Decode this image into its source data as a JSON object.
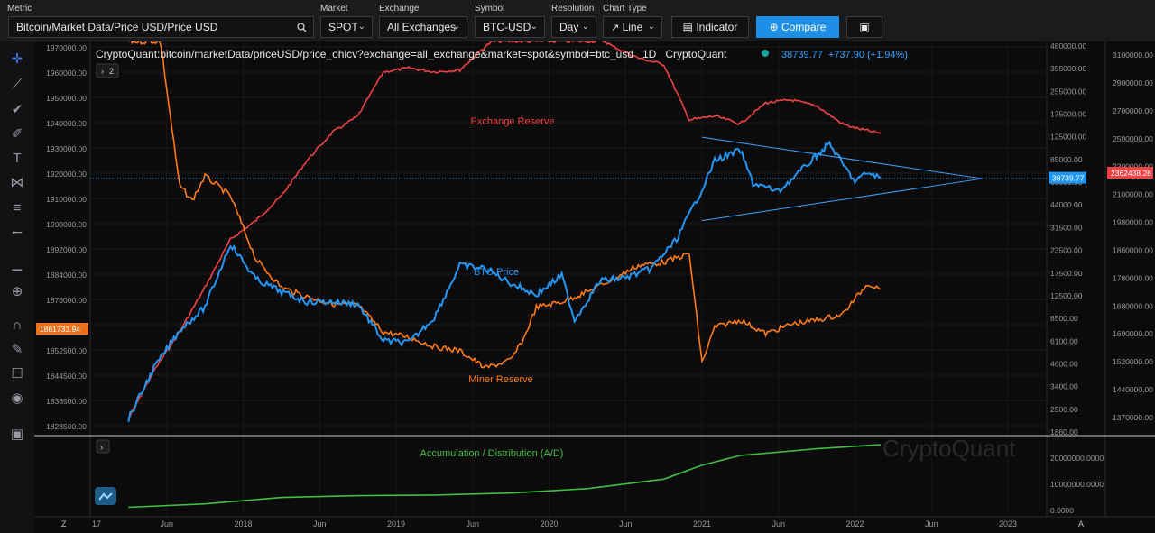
{
  "toolbar": {
    "metric_label": "Metric",
    "metric_value": "Bitcoin/Market Data/Price USD/Price USD",
    "market_label": "Market",
    "market_value": "SPOT",
    "exchange_label": "Exchange",
    "exchange_value": "All Exchanges",
    "symbol_label": "Symbol",
    "symbol_value": "BTC-USD",
    "resolution_label": "Resolution",
    "resolution_value": "Day",
    "chart_type_label": "Chart Type",
    "chart_type_value": "Line",
    "indicator_label": "Indicator",
    "compare_label": "Compare"
  },
  "legend": {
    "source": "CryptoQuant:bitcoin/marketData/priceUSD/price_ohlcv?exchange=all_exchange&market=spot&symbol=btc_usd",
    "resolution": "1D",
    "brand": "CryptoQuant",
    "last_value": "38739.77",
    "change": "+737.90 (+1.94%)",
    "collapse_count": "2"
  },
  "colors": {
    "btc_price": "#2196f3",
    "exchange_reserve": "#f04242",
    "miner_reserve": "#ff7a10",
    "accumulation": "#3fbf3f",
    "background": "#0b0b0c",
    "accent": "#1e8fe6"
  },
  "watermark": "CryptoQuant",
  "chart_data": [
    {
      "type": "line",
      "title": "",
      "x_ticks": [
        "17",
        "Jun",
        "2018",
        "Jun",
        "2019",
        "Jun",
        "2020",
        "Jun",
        "2021",
        "Jun",
        "2022",
        "Jun",
        "2023"
      ],
      "left_axis_ticks": [
        "1970000.00",
        "1960000.00",
        "1950000.00",
        "1940000.00",
        "1930000.00",
        "1920000.00",
        "1910000.00",
        "1900000.00",
        "1892000.00",
        "1884000.00",
        "1876000.00",
        "1868000.00",
        "1852500.00",
        "1844500.00",
        "1836500.00",
        "1828500.00"
      ],
      "left_axis_current": "1861733.94",
      "price_axis_ticks": [
        "480000.00",
        "355000.00",
        "255000.00",
        "175000.00",
        "125000.00",
        "85000.00",
        "60000.00",
        "44000.00",
        "31500.00",
        "23500.00",
        "17500.00",
        "12500.00",
        "8500.00",
        "6100.00",
        "4600.00",
        "3400.00",
        "2500.00",
        "1860.00"
      ],
      "price_axis_current": "38739.77",
      "right_axis_ticks": [
        "3100000.00",
        "2900000.00",
        "2700000.00",
        "2500000.00",
        "2300000.00",
        "2100000.00",
        "1980000.00",
        "1860000.00",
        "1780000.00",
        "1680000.00",
        "1600000.00",
        "1520000.00",
        "1440000.00",
        "1370000.00"
      ],
      "right_axis_current": "2362438.28",
      "annotations": [
        "Exchange Reserve",
        "BTC Price",
        "Miner Reserve"
      ],
      "series": [
        {
          "name": "BTC Price",
          "scale": "log",
          "x": [
            "2017-04",
            "2017-06",
            "2017-08",
            "2017-10",
            "2017-12",
            "2018-02",
            "2018-04",
            "2018-06",
            "2018-08",
            "2018-10",
            "2018-12",
            "2019-02",
            "2019-04",
            "2019-06",
            "2019-08",
            "2019-10",
            "2019-12",
            "2020-02",
            "2020-03",
            "2020-05",
            "2020-07",
            "2020-09",
            "2020-11",
            "2021-01",
            "2021-02",
            "2021-04",
            "2021-05",
            "2021-07",
            "2021-09",
            "2021-11",
            "2021-12",
            "2022-01",
            "2022-02",
            "2022-03"
          ],
          "values": [
            1200,
            2500,
            4300,
            6000,
            15000,
            9000,
            7500,
            6500,
            6500,
            6300,
            3700,
            3600,
            5200,
            11000,
            10500,
            8500,
            7200,
            9500,
            5000,
            8800,
            9200,
            10500,
            16000,
            33000,
            50000,
            58000,
            36000,
            32000,
            45000,
            64000,
            48000,
            37000,
            42000,
            38739.77
          ]
        },
        {
          "name": "Exchange Reserve",
          "scale": "log",
          "x": [
            "2017-04",
            "2017-06",
            "2017-08",
            "2017-10",
            "2017-12",
            "2018-02",
            "2018-04",
            "2018-06",
            "2018-08",
            "2018-10",
            "2018-12",
            "2019-02",
            "2019-04",
            "2019-06",
            "2019-08",
            "2019-10",
            "2019-12",
            "2020-02",
            "2020-04",
            "2020-06",
            "2020-08",
            "2020-10",
            "2020-12",
            "2021-02",
            "2021-04",
            "2021-06",
            "2021-08",
            "2021-10",
            "2021-12",
            "2022-01",
            "2022-03"
          ],
          "values": [
            1200,
            2400,
            4200,
            8000,
            16000,
            21000,
            30000,
            50000,
            75000,
            95000,
            180000,
            190000,
            180000,
            185000,
            260000,
            330000,
            280000,
            300000,
            330000,
            260000,
            220000,
            200000,
            90000,
            95000,
            85000,
            115000,
            120000,
            110000,
            85000,
            80000,
            74000
          ]
        },
        {
          "name": "Miner Reserve",
          "scale": "log",
          "x": [
            "2017-04",
            "2017-06",
            "2017-07",
            "2017-08",
            "2017-09",
            "2017-10",
            "2017-12",
            "2018-02",
            "2018-04",
            "2018-06",
            "2018-08",
            "2018-10",
            "2018-12",
            "2019-02",
            "2019-04",
            "2019-06",
            "2019-08",
            "2019-10",
            "2019-11",
            "2019-12",
            "2020-02",
            "2020-04",
            "2020-06",
            "2020-08",
            "2020-10",
            "2020-12",
            "2021-01",
            "2021-02",
            "2021-04",
            "2021-06",
            "2021-08",
            "2021-10",
            "2021-12",
            "2022-02",
            "2022-03"
          ],
          "values": [
            600000,
            600000,
            140000,
            35000,
            28000,
            40000,
            30000,
            12000,
            8000,
            7000,
            6300,
            6200,
            4200,
            3900,
            3400,
            3200,
            2500,
            2800,
            3800,
            6000,
            6500,
            7500,
            9000,
            11000,
            11500,
            13000,
            2700,
            4500,
            5000,
            4100,
            4700,
            5000,
            5400,
            8500,
            7800
          ]
        },
        {
          "name": "Accumulation / Distribution (A/D)",
          "x": [
            "2017-04",
            "2017-10",
            "2018-04",
            "2018-10",
            "2019-04",
            "2019-10",
            "2020-04",
            "2020-10",
            "2021-01",
            "2021-04",
            "2021-10",
            "2022-03"
          ],
          "values": [
            1500000,
            2800000,
            5200000,
            6000000,
            6300000,
            7000000,
            8500000,
            12000000,
            17500000,
            21000000,
            23500000,
            25000000
          ]
        }
      ],
      "triangle_pattern": {
        "upper": [
          [
            "2021-01",
            70000
          ],
          [
            "2022-11",
            38500
          ]
        ],
        "lower": [
          [
            "2021-01",
            21000
          ],
          [
            "2022-11",
            38500
          ]
        ]
      },
      "indicator_axis_ticks": [
        "20000000.0000",
        "10000000.0000",
        "0.0000"
      ]
    }
  ]
}
